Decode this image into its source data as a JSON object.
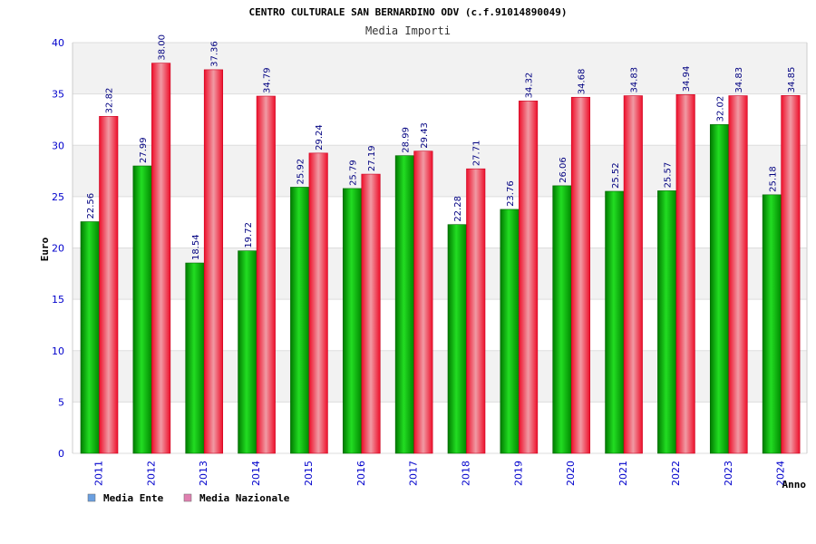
{
  "colors": {
    "series_ente": "#00aa00",
    "series_nazionale": "#e8102a",
    "legend_ente": "#6a9fe0",
    "legend_nazionale": "#e080b0",
    "tick_labels": "#0000cc",
    "data_labels": "#000080",
    "band": "#f2f2f2",
    "grid": "#dddddd"
  },
  "chart_data": {
    "type": "bar",
    "title": "CENTRO CULTURALE SAN BERNARDINO ODV (c.f.91014890049)",
    "subtitle": "Media Importi",
    "xlabel": "Anno",
    "ylabel": "Euro",
    "ylim": [
      0,
      40
    ],
    "yticks": [
      0,
      5,
      10,
      15,
      20,
      25,
      30,
      35,
      40
    ],
    "grid": true,
    "legend_position": "bottom-left",
    "categories": [
      "2011",
      "2012",
      "2013",
      "2014",
      "2015",
      "2016",
      "2017",
      "2018",
      "2019",
      "2020",
      "2021",
      "2022",
      "2023",
      "2024"
    ],
    "series": [
      {
        "name": "Media Ente",
        "values": [
          22.56,
          27.99,
          18.54,
          19.72,
          25.92,
          25.79,
          28.99,
          22.28,
          23.76,
          26.06,
          25.52,
          25.57,
          32.02,
          25.18
        ]
      },
      {
        "name": "Media Nazionale",
        "values": [
          32.82,
          38.0,
          37.36,
          34.79,
          29.24,
          27.19,
          29.43,
          27.71,
          34.32,
          34.68,
          34.83,
          34.94,
          34.83,
          34.85
        ]
      }
    ],
    "data_labels": [
      [
        "22.56",
        "27.99",
        "18.54",
        "19.72",
        "25.92",
        "25.79",
        "28.99",
        "22.28",
        "23.76",
        "26.06",
        "25.52",
        "25.57",
        "32.02",
        "25.18"
      ],
      [
        "32.82",
        "38.00",
        "37.36",
        "34.79",
        "29.24",
        "27.19",
        "29.43",
        "27.71",
        "34.32",
        "34.68",
        "34.83",
        "34.94",
        "34.83",
        "34.85"
      ]
    ]
  }
}
